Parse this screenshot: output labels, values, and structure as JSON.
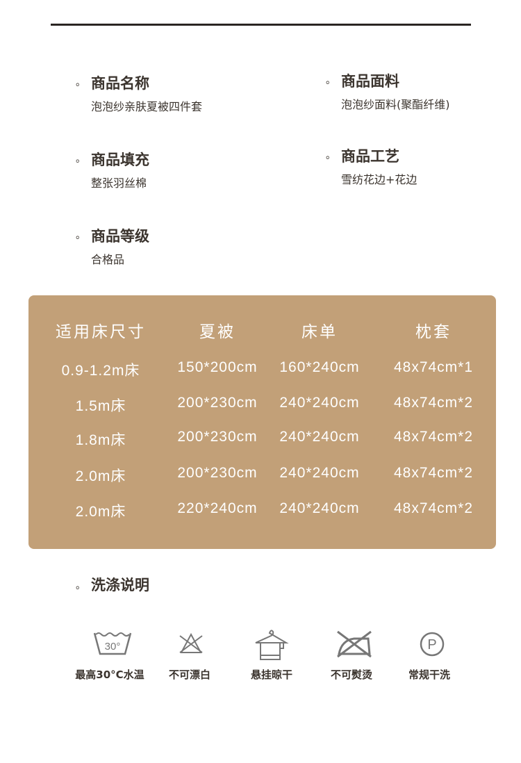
{
  "specs": [
    {
      "title": "商品名称",
      "value": "泡泡纱亲肤夏被四件套"
    },
    {
      "title": "商品面料",
      "value": "泡泡纱面料(聚酯纤维)"
    },
    {
      "title": "商品填充",
      "value": "整张羽丝棉"
    },
    {
      "title": "商品工艺",
      "value": "雪纺花边+花边"
    },
    {
      "title": "商品等级",
      "value": "合格品"
    }
  ],
  "bullet": "。",
  "table": {
    "headers": [
      "适用床尺寸",
      "夏被",
      "床单",
      "枕套"
    ],
    "rows": [
      [
        "0.9-1.2m床",
        "150*200cm",
        "160*240cm",
        "48x74cm*1"
      ],
      [
        "1.5m床",
        "200*230cm",
        "240*240cm",
        "48x74cm*2"
      ],
      [
        "1.8m床",
        "200*230cm",
        "240*240cm",
        "48x74cm*2"
      ],
      [
        "2.0m床",
        "200*230cm",
        "240*240cm",
        "48x74cm*2"
      ],
      [
        "2.0m床",
        "220*240cm",
        "240*240cm",
        "48x74cm*2"
      ]
    ],
    "bg_color": "#c2a078"
  },
  "wash": {
    "title": "洗涤说明",
    "icon_30": "30°",
    "icon_p": "P",
    "items": [
      {
        "icon": "wash-30-icon",
        "label": "最高30°C水温"
      },
      {
        "icon": "no-bleach-icon",
        "label": "不可漂白"
      },
      {
        "icon": "hang-dry-icon",
        "label": "悬挂晾干"
      },
      {
        "icon": "no-iron-icon",
        "label": "不可熨烫"
      },
      {
        "icon": "dry-clean-p-icon",
        "label": "常规干洗"
      }
    ]
  }
}
